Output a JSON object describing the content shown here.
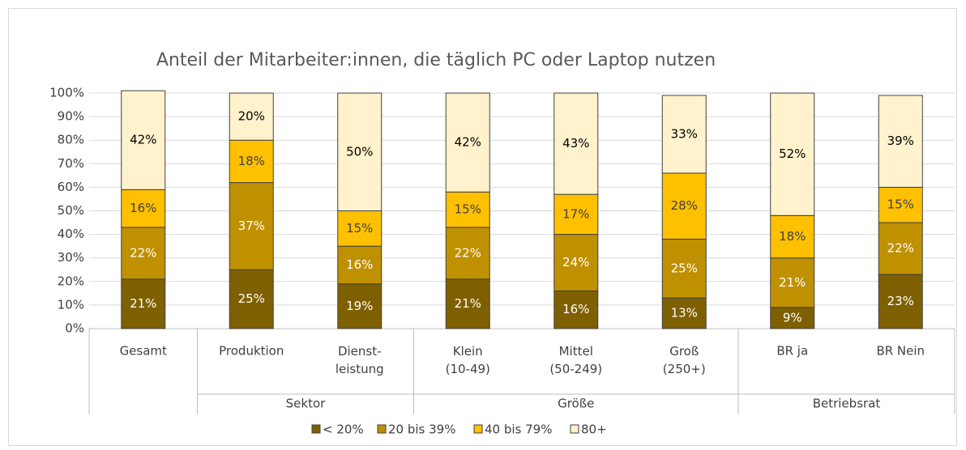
{
  "chart_data": {
    "type": "stacked_bar",
    "title": "Anteil der Mitarbeiter:innen, die täglich PC oder Laptop nutzen",
    "categories": [
      "Gesamt",
      "Produktion",
      "Dienst-\nleistung",
      "Klein\n(10-49)",
      "Mittel\n(50-249)",
      "Groß\n(250+)",
      "BR ja",
      "BR Nein"
    ],
    "category_groups": [
      null,
      "Sektor",
      "Sektor",
      "Größe",
      "Größe",
      "Größe",
      "Betriebsrat",
      "Betriebsrat"
    ],
    "series": [
      {
        "name": "< 20%",
        "color": "#7f6000",
        "label_color": "#ffffff",
        "values": [
          21,
          25,
          19,
          21,
          16,
          13,
          9,
          23
        ],
        "value_labels": [
          "21%",
          "25%",
          "19%",
          "21%",
          "16%",
          "13%",
          "9%",
          "23%"
        ]
      },
      {
        "name": "20 bis 39%",
        "color": "#bf9000",
        "label_color": "#ffffff",
        "values": [
          22,
          37,
          16,
          22,
          24,
          25,
          21,
          22
        ],
        "value_labels": [
          "22%",
          "37%",
          "16%",
          "22%",
          "24%",
          "25%",
          "21%",
          "22%"
        ]
      },
      {
        "name": "40 bis 79%",
        "color": "#ffc000",
        "label_color": "#404040",
        "values": [
          16,
          18,
          15,
          15,
          17,
          28,
          18,
          15
        ],
        "value_labels": [
          "16%",
          "18%",
          "15%",
          "15%",
          "17%",
          "28%",
          "18%",
          "15%"
        ]
      },
      {
        "name": "80+",
        "color": "#fff2cc",
        "label_color": "#000000",
        "values": [
          42,
          20,
          50,
          42,
          43,
          33,
          52,
          39
        ],
        "value_labels": [
          "42%",
          "20%",
          "50%",
          "42%",
          "43%",
          "33%",
          "52%",
          "39%"
        ]
      }
    ],
    "ylim": [
      0,
      100
    ],
    "yticks": [
      {
        "value": 0,
        "label": "0%"
      },
      {
        "value": 10,
        "label": "10%"
      },
      {
        "value": 20,
        "label": "20%"
      },
      {
        "value": 30,
        "label": "30%"
      },
      {
        "value": 40,
        "label": "40%"
      },
      {
        "value": 50,
        "label": "50%"
      },
      {
        "value": 60,
        "label": "60%"
      },
      {
        "value": 70,
        "label": "70%"
      },
      {
        "value": 80,
        "label": "80%"
      },
      {
        "value": 90,
        "label": "90%"
      },
      {
        "value": 100,
        "label": "100%"
      }
    ],
    "grid": true,
    "legend": "bottom"
  }
}
